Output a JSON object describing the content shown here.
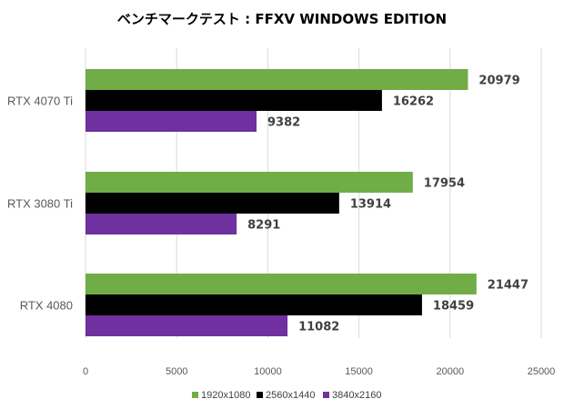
{
  "chart_data": {
    "type": "bar",
    "orientation": "horizontal",
    "title": "ベンチマークテスト : FFXV WINDOWS EDITION",
    "categories": [
      "RTX 4070 Ti",
      "RTX 3080 Ti",
      "RTX 4080"
    ],
    "series": [
      {
        "name": "1920x1080",
        "color": "#70ad47",
        "values": [
          20979,
          17954,
          21447
        ]
      },
      {
        "name": "2560x1440",
        "color": "#000000",
        "values": [
          16262,
          13914,
          18459
        ]
      },
      {
        "name": "3840x2160",
        "color": "#7030a0",
        "values": [
          9382,
          8291,
          11082
        ]
      }
    ],
    "xlim": [
      0,
      25000
    ],
    "xticks": [
      0,
      5000,
      10000,
      15000,
      20000,
      25000
    ],
    "grid": true,
    "legend_position": "bottom",
    "data_labels": true
  }
}
